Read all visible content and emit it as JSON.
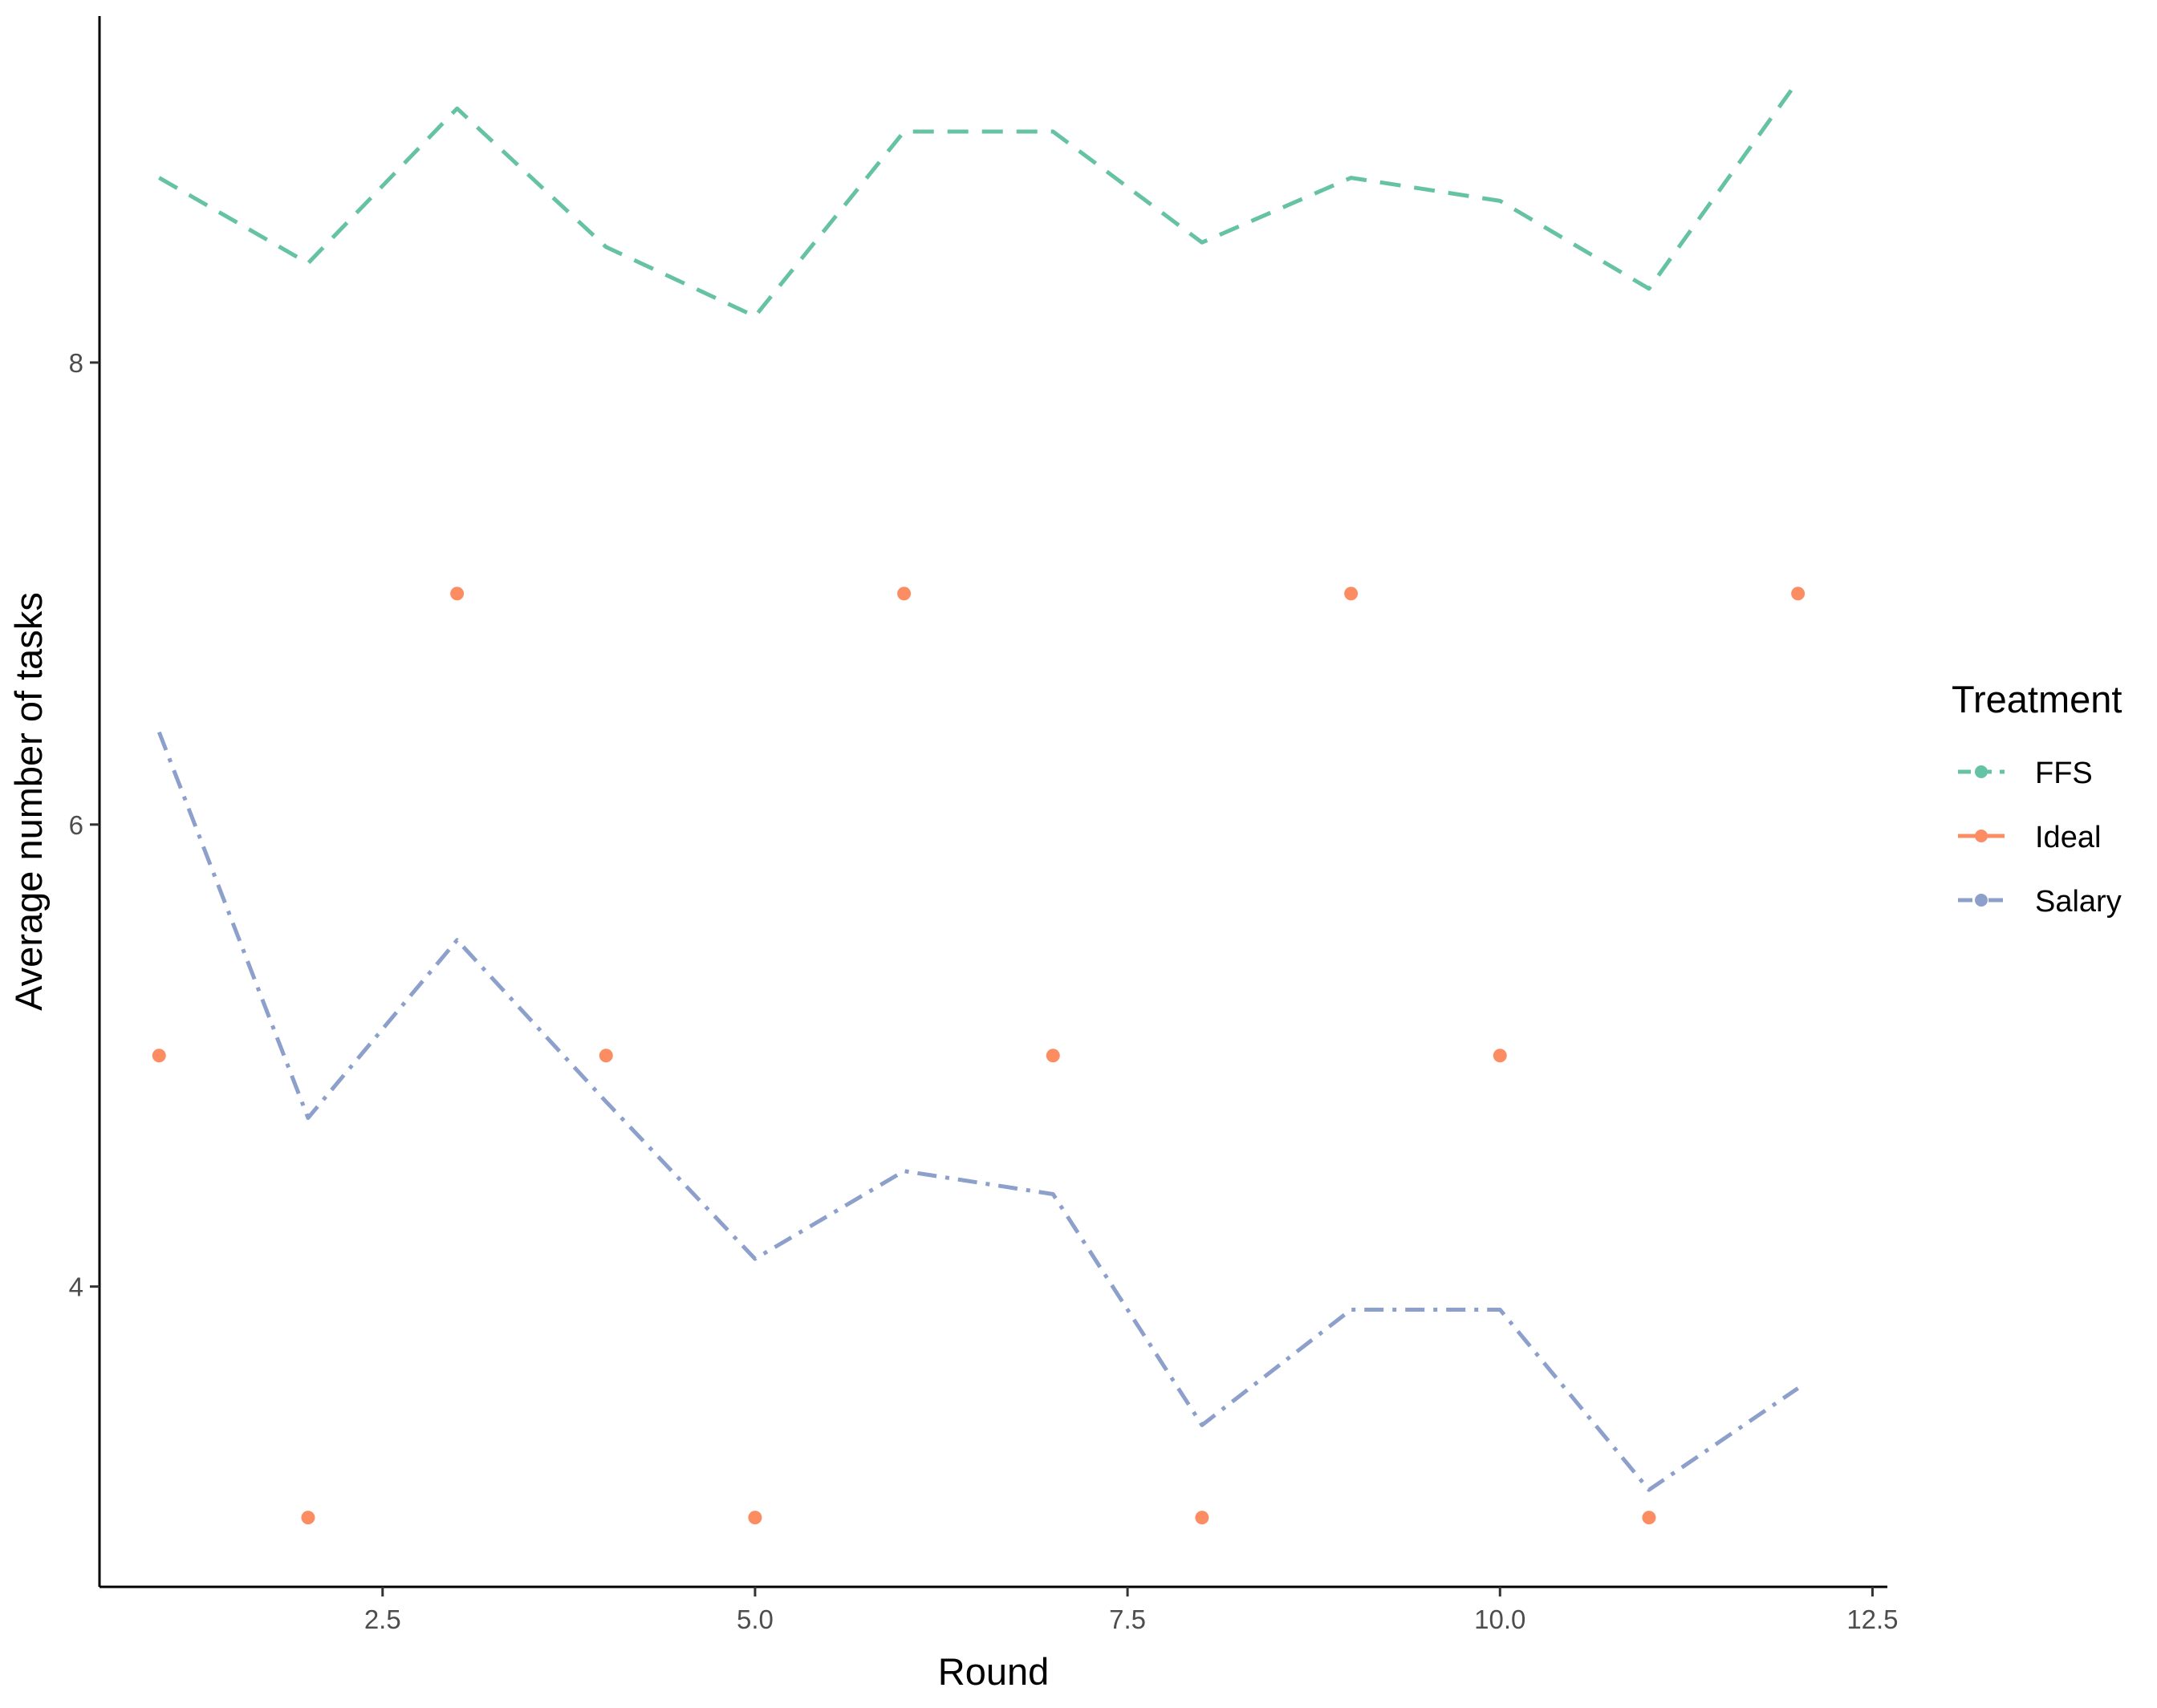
{
  "chart_data": {
    "type": "line",
    "xlabel": "Round",
    "ylabel": "Average number of tasks",
    "xlim": [
      0.6,
      12.6
    ],
    "ylim": [
      2.7,
      9.5
    ],
    "x_ticks": [
      2.5,
      5.0,
      7.5,
      10.0,
      12.5
    ],
    "x_tick_labels": [
      "2.5",
      "5.0",
      "7.5",
      "10.0",
      "12.5"
    ],
    "y_ticks": [
      4,
      6,
      8
    ],
    "y_tick_labels": [
      "4",
      "6",
      "8"
    ],
    "grid": false,
    "legend": {
      "title": "Treatment",
      "position": "right"
    },
    "x": [
      1,
      2,
      3,
      4,
      5,
      6,
      7,
      8,
      9,
      10,
      11,
      12
    ],
    "series": [
      {
        "name": "FFS",
        "color": "#66C2A5",
        "style": "dashed-line",
        "values": [
          8.8,
          8.43,
          9.1,
          8.5,
          8.2,
          9.0,
          9.0,
          8.52,
          8.8,
          8.7,
          8.32,
          9.22
        ]
      },
      {
        "name": "Ideal",
        "color": "#FC8D62",
        "style": "points",
        "values": [
          5,
          3,
          7,
          5,
          3,
          7,
          5,
          3,
          7,
          5,
          3,
          7
        ]
      },
      {
        "name": "Salary",
        "color": "#8DA0CB",
        "style": "dash-dot-line",
        "values": [
          6.4,
          4.73,
          5.5,
          4.8,
          4.12,
          4.5,
          4.4,
          3.4,
          3.9,
          3.9,
          3.12,
          3.56
        ]
      }
    ]
  }
}
